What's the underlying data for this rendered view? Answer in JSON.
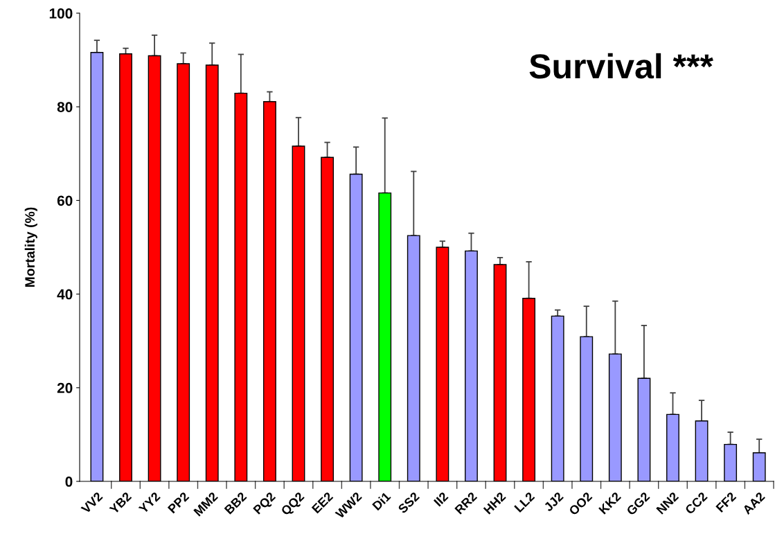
{
  "chart_data": {
    "type": "bar",
    "title": "Survival ***",
    "ylabel": "Mortality (%)",
    "categories": [
      "VV2",
      "YB2",
      "YY2",
      "PP2",
      "MM2",
      "BB2",
      "PQ2",
      "QQ2",
      "EE2",
      "WW2",
      "Di1",
      "SS2",
      "II2",
      "RR2",
      "HH2",
      "LL2",
      "JJ2",
      "OO2",
      "KK2",
      "GG2",
      "NN2",
      "CC2",
      "FF2",
      "AA2"
    ],
    "values": [
      91.6,
      91.3,
      90.9,
      89.2,
      88.9,
      82.9,
      81.1,
      71.6,
      69.2,
      65.6,
      61.6,
      52.5,
      50.0,
      49.2,
      46.3,
      39.1,
      35.3,
      30.9,
      27.2,
      22.0,
      14.3,
      12.9,
      7.9,
      6.1
    ],
    "errors": [
      [
        91.6,
        94.2
      ],
      [
        91.3,
        92.5
      ],
      [
        90.9,
        95.3
      ],
      [
        89.2,
        91.5
      ],
      [
        88.9,
        93.6
      ],
      [
        82.9,
        91.2
      ],
      [
        81.1,
        83.2
      ],
      [
        71.6,
        77.7
      ],
      [
        69.2,
        72.4
      ],
      [
        65.6,
        71.4
      ],
      [
        61.6,
        77.6
      ],
      [
        52.5,
        66.2
      ],
      [
        50.0,
        51.3
      ],
      [
        49.2,
        53.0
      ],
      [
        46.3,
        47.8
      ],
      [
        39.1,
        46.9
      ],
      [
        35.3,
        36.6
      ],
      [
        30.9,
        37.4
      ],
      [
        27.2,
        38.5
      ],
      [
        22.0,
        33.3
      ],
      [
        14.3,
        18.9
      ],
      [
        12.9,
        17.3
      ],
      [
        7.9,
        10.5
      ],
      [
        6.1,
        9.0
      ]
    ],
    "colors": [
      "#9999ff",
      "#ff0000",
      "#ff0000",
      "#ff0000",
      "#ff0000",
      "#ff0000",
      "#ff0000",
      "#ff0000",
      "#ff0000",
      "#9999ff",
      "#00ff00",
      "#9999ff",
      "#ff0000",
      "#9999ff",
      "#ff0000",
      "#ff0000",
      "#9999ff",
      "#9999ff",
      "#9999ff",
      "#9999ff",
      "#9999ff",
      "#9999ff",
      "#9999ff",
      "#9999ff"
    ],
    "ylim": [
      0,
      100
    ],
    "yticks": [
      0,
      20,
      40,
      60,
      80,
      100
    ],
    "grid": false,
    "legend": false
  }
}
